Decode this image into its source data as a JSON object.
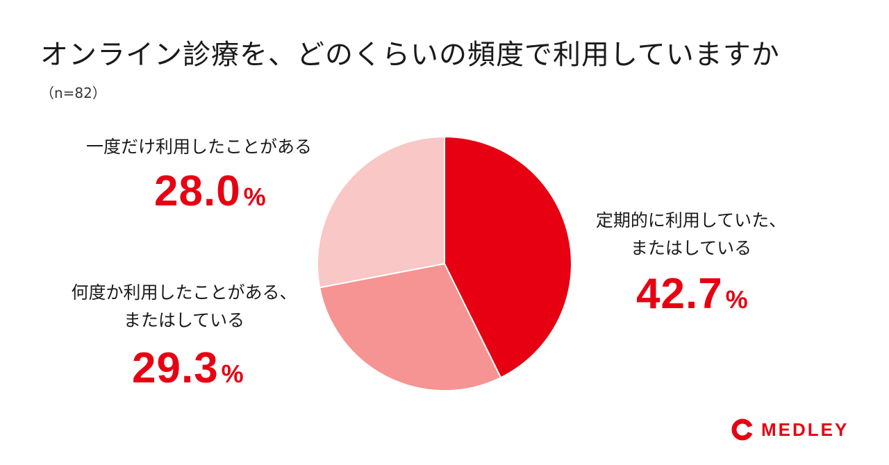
{
  "title": "オンライン診療を、どのくらいの頻度で利用していますか",
  "subtitle": "（n=82）",
  "chart_data": {
    "type": "pie",
    "unit": "%",
    "slices": [
      {
        "label_lines": [
          "定期的に利用していた、",
          "またはしている"
        ],
        "value": 42.7,
        "value_text": "42.7",
        "color": "#e60012"
      },
      {
        "label_lines": [
          "何度か利用したことがある、",
          "またはしている"
        ],
        "value": 29.3,
        "value_text": "29.3",
        "color": "#f59493"
      },
      {
        "label_lines": [
          "一度だけ利用したことがある"
        ],
        "value": 28.0,
        "value_text": "28.0",
        "color": "#f8c7c6"
      }
    ]
  },
  "colors": {
    "accent": "#e60012",
    "text": "#1a1a1a"
  },
  "logo": {
    "text": "MEDLEY",
    "icon": "medley-logo-icon",
    "color": "#e60012"
  }
}
